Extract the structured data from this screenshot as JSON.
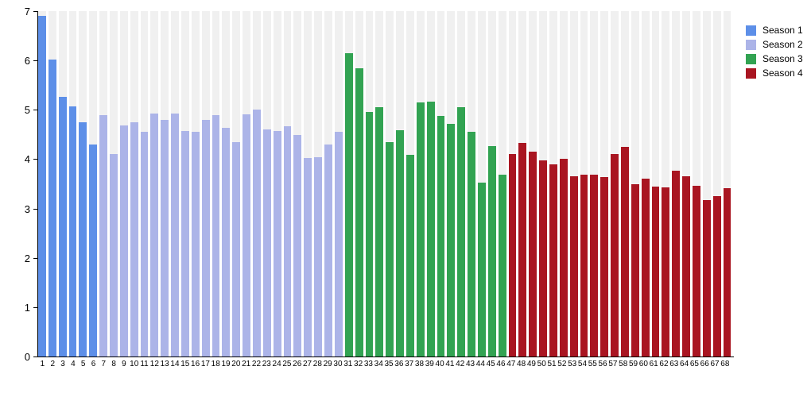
{
  "chart_data": {
    "type": "bar",
    "title": "",
    "xlabel": "",
    "ylabel": "",
    "ylim": [
      0,
      7
    ],
    "yticks": [
      "0",
      "1",
      "2",
      "3",
      "4",
      "5",
      "6",
      "7"
    ],
    "grid": "off",
    "legend_position": "right",
    "plot_style": {
      "column_background": "#F0F0F0",
      "axis_color": "#000000",
      "page_background": "#FFFFFF"
    },
    "categories": [
      "1",
      "2",
      "3",
      "4",
      "5",
      "6",
      "7",
      "8",
      "9",
      "10",
      "11",
      "12",
      "13",
      "14",
      "15",
      "16",
      "17",
      "18",
      "19",
      "20",
      "21",
      "22",
      "23",
      "24",
      "25",
      "26",
      "27",
      "28",
      "29",
      "30",
      "31",
      "32",
      "33",
      "34",
      "35",
      "36",
      "37",
      "38",
      "39",
      "40",
      "41",
      "42",
      "43",
      "44",
      "45",
      "46",
      "47",
      "48",
      "49",
      "50",
      "51",
      "52",
      "53",
      "54",
      "55",
      "56",
      "57",
      "58",
      "59",
      "60",
      "61",
      "62",
      "63",
      "64",
      "65",
      "66",
      "67",
      "68"
    ],
    "series": [
      {
        "name": "Season 1",
        "color": "#5D8FE8",
        "start_category": "1",
        "values": [
          6.9,
          6.02,
          5.27,
          5.07,
          4.74,
          4.3
        ]
      },
      {
        "name": "Season 2",
        "color": "#ACB4E8",
        "start_category": "7",
        "values": [
          4.9,
          4.1,
          4.68,
          4.75,
          4.55,
          4.93,
          4.8,
          4.92,
          4.57,
          4.55,
          4.79,
          4.9,
          4.63,
          4.34,
          4.91,
          5.0,
          4.61,
          4.57,
          4.66,
          4.49,
          4.03,
          4.04,
          4.3,
          4.56
        ]
      },
      {
        "name": "Season 3",
        "color": "#32A352",
        "start_category": "31",
        "values": [
          6.14,
          5.84,
          4.95,
          5.05,
          4.34,
          4.58,
          4.09,
          5.15,
          5.17,
          4.88,
          4.71,
          5.06,
          4.56,
          3.53,
          4.27,
          3.69
        ]
      },
      {
        "name": "Season 4",
        "color": "#A91521",
        "start_category": "47",
        "values": [
          4.11,
          4.33,
          4.15,
          3.98,
          3.9,
          4.0,
          3.66,
          3.68,
          3.68,
          3.64,
          4.1,
          4.25,
          3.49,
          3.6,
          3.45,
          3.42,
          3.76,
          3.66,
          3.46,
          3.17,
          3.25,
          3.41
        ]
      }
    ]
  }
}
